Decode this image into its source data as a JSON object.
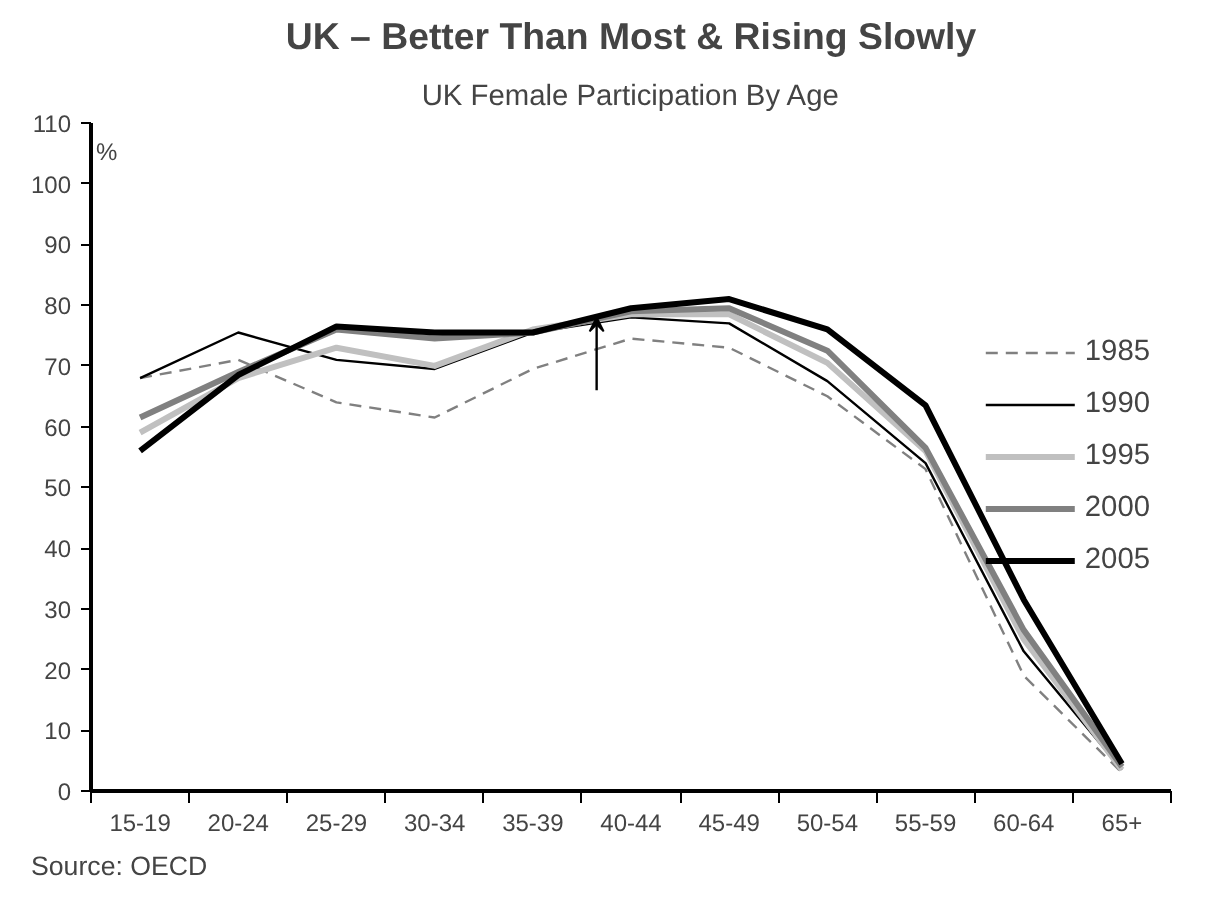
{
  "chart_data": {
    "type": "line",
    "title": "UK – Better Than Most & Rising Slowly",
    "subtitle": "UK Female Participation By Age",
    "ylabel": "%",
    "categories": [
      "15-19",
      "20-24",
      "25-29",
      "30-34",
      "35-39",
      "40-44",
      "45-49",
      "50-54",
      "55-59",
      "60-64",
      "65+"
    ],
    "series": [
      {
        "name": "1985",
        "color": "#808080",
        "line_style": "dashed",
        "values": [
          68,
          71,
          64,
          61.5,
          69.5,
          74.5,
          73,
          65,
          53,
          19,
          3
        ]
      },
      {
        "name": "1990",
        "color": "#000000",
        "values": [
          68,
          75.5,
          71,
          69.5,
          75.5,
          78,
          77,
          67.5,
          54,
          23,
          3.5
        ]
      },
      {
        "name": "1995",
        "color": "#c0c0c0",
        "values": [
          59,
          68,
          73,
          70,
          76,
          78.5,
          78.5,
          70.5,
          56,
          25,
          3.5
        ]
      },
      {
        "name": "2000",
        "color": "#808080",
        "values": [
          61.5,
          69,
          76,
          74.5,
          75.5,
          79,
          79.5,
          72.5,
          56.5,
          26.5,
          4
        ]
      },
      {
        "name": "2005",
        "color": "#000000",
        "values": [
          56,
          68.5,
          76.5,
          75.5,
          75.5,
          79.5,
          81,
          76,
          63.5,
          31.5,
          4.5
        ]
      }
    ],
    "ylim": [
      0,
      110
    ],
    "yticks": [
      0,
      10,
      20,
      30,
      40,
      50,
      60,
      70,
      80,
      90,
      100,
      110
    ],
    "grid": false,
    "legend": "right",
    "line_style": "solid",
    "annotations": [
      "Source: OECD"
    ]
  }
}
